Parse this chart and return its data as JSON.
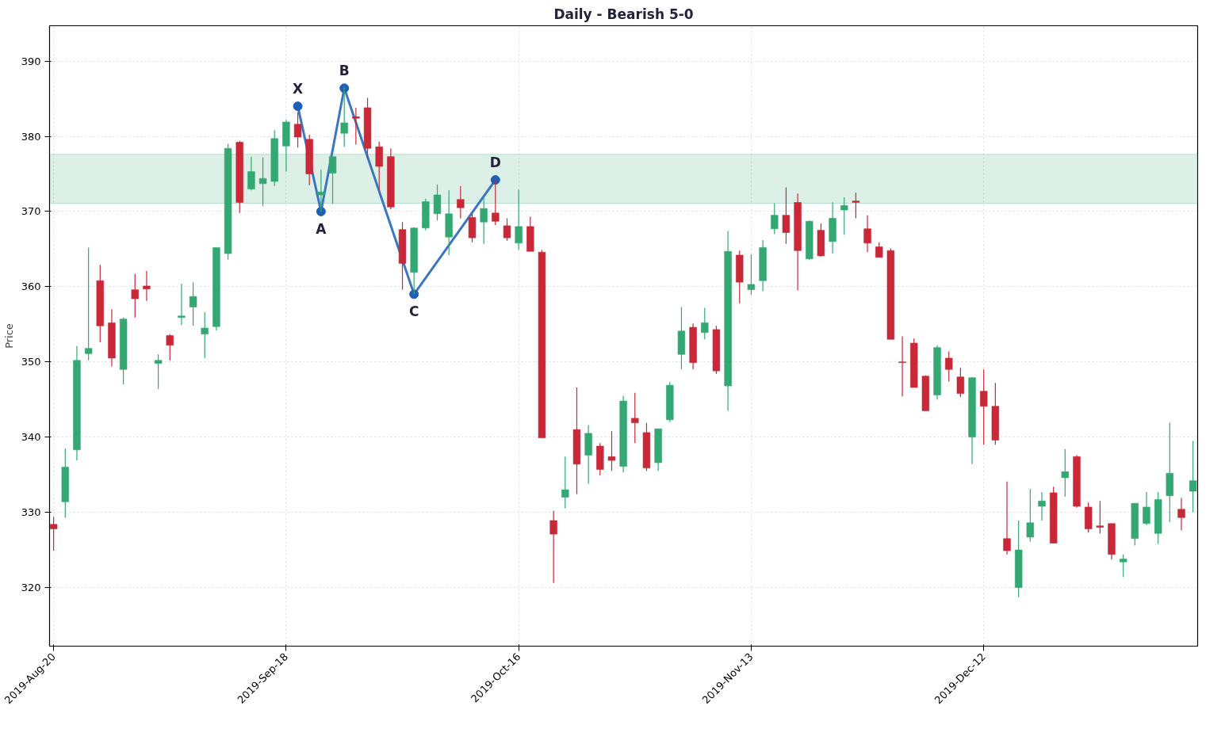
{
  "chart_data": {
    "type": "candlestick",
    "title": "Daily - Bearish 5-0",
    "ylabel": "Price",
    "categories": [
      "2019-Aug-20",
      null,
      null,
      null,
      null,
      null,
      null,
      null,
      null,
      null,
      null,
      null,
      null,
      null,
      null,
      null,
      null,
      null,
      null,
      null,
      "2019-Sep-18",
      null,
      null,
      null,
      null,
      null,
      null,
      null,
      null,
      null,
      null,
      null,
      null,
      null,
      null,
      null,
      null,
      null,
      null,
      null,
      "2019-Oct-16",
      null,
      null,
      null,
      null,
      null,
      null,
      null,
      null,
      null,
      null,
      null,
      null,
      null,
      null,
      null,
      null,
      null,
      null,
      null,
      "2019-Nov-13",
      null,
      null,
      null,
      null,
      null,
      null,
      null,
      null,
      null,
      null,
      null,
      null,
      null,
      null,
      null,
      null,
      null,
      null,
      null,
      "2019-Dec-12",
      null,
      null,
      null,
      null,
      null,
      null,
      null,
      null,
      null,
      null,
      null,
      null,
      null,
      null,
      null,
      null,
      null,
      null
    ],
    "ohlc": [
      [
        328.4,
        329.4,
        324.9,
        327.8
      ],
      [
        331.4,
        338.5,
        329.3,
        336.0
      ],
      [
        338.3,
        352.1,
        336.9,
        350.2
      ],
      [
        351.1,
        365.2,
        350.2,
        351.8
      ],
      [
        360.8,
        362.9,
        352.6,
        354.8
      ],
      [
        355.2,
        357.0,
        349.4,
        350.5
      ],
      [
        349.0,
        355.9,
        347.0,
        355.7
      ],
      [
        359.6,
        361.7,
        355.9,
        358.4
      ],
      [
        360.1,
        362.1,
        358.1,
        359.7
      ],
      [
        349.8,
        351.0,
        346.4,
        350.2
      ],
      [
        353.5,
        353.7,
        350.2,
        352.2
      ],
      [
        355.9,
        360.4,
        354.9,
        356.1
      ],
      [
        357.3,
        360.6,
        354.8,
        358.7
      ],
      [
        353.7,
        356.6,
        350.5,
        354.5
      ],
      [
        354.7,
        365.2,
        354.2,
        365.2
      ],
      [
        364.4,
        379.0,
        363.6,
        378.4
      ],
      [
        379.2,
        379.4,
        369.8,
        371.2
      ],
      [
        373.0,
        377.3,
        372.8,
        375.3
      ],
      [
        373.7,
        377.2,
        370.7,
        374.4
      ],
      [
        374.0,
        380.8,
        373.4,
        379.7
      ],
      [
        378.7,
        382.2,
        375.3,
        381.9
      ],
      [
        381.6,
        383.2,
        378.5,
        379.9
      ],
      [
        379.6,
        380.2,
        373.5,
        375.0
      ],
      [
        372.2,
        375.6,
        370.0,
        372.6
      ],
      [
        375.1,
        377.3,
        371.0,
        377.3
      ],
      [
        380.4,
        386.5,
        378.6,
        381.8
      ],
      [
        382.6,
        383.8,
        378.9,
        382.4
      ],
      [
        383.8,
        385.1,
        377.0,
        378.4
      ],
      [
        378.6,
        379.3,
        372.8,
        376.0
      ],
      [
        377.3,
        378.4,
        370.3,
        370.6
      ],
      [
        367.6,
        368.6,
        359.6,
        363.1
      ],
      [
        361.9,
        367.9,
        359.0,
        367.8
      ],
      [
        367.8,
        371.7,
        367.5,
        371.3
      ],
      [
        369.7,
        373.6,
        368.8,
        372.2
      ],
      [
        366.6,
        372.8,
        364.2,
        369.7
      ],
      [
        371.6,
        373.4,
        369.1,
        370.5
      ],
      [
        369.2,
        369.7,
        365.9,
        366.5
      ],
      [
        368.6,
        371.8,
        365.7,
        370.4
      ],
      [
        369.8,
        374.1,
        368.2,
        368.7
      ],
      [
        368.1,
        369.1,
        366.1,
        366.5
      ],
      [
        365.8,
        372.9,
        364.9,
        368.0
      ],
      [
        368.0,
        369.3,
        364.7,
        364.7
      ],
      [
        364.6,
        364.9,
        339.9,
        339.9
      ],
      [
        328.9,
        330.2,
        320.6,
        327.1
      ],
      [
        332.0,
        337.4,
        330.5,
        333.0
      ],
      [
        341.0,
        346.6,
        332.4,
        336.4
      ],
      [
        337.6,
        341.6,
        333.8,
        340.5
      ],
      [
        338.8,
        339.2,
        334.9,
        335.7
      ],
      [
        337.4,
        340.8,
        335.5,
        336.9
      ],
      [
        336.1,
        345.5,
        335.3,
        344.8
      ],
      [
        342.5,
        345.9,
        339.2,
        341.9
      ],
      [
        340.6,
        341.9,
        335.5,
        335.9
      ],
      [
        336.6,
        341.1,
        335.5,
        341.1
      ],
      [
        342.3,
        347.3,
        342.0,
        346.9
      ],
      [
        351.0,
        357.3,
        349.0,
        354.1
      ],
      [
        354.6,
        355.1,
        349.0,
        349.9
      ],
      [
        353.9,
        357.2,
        353.0,
        355.2
      ],
      [
        354.3,
        354.8,
        348.4,
        348.8
      ],
      [
        346.8,
        367.4,
        343.5,
        364.7
      ],
      [
        364.2,
        364.8,
        357.8,
        360.6
      ],
      [
        359.6,
        364.3,
        358.9,
        360.3
      ],
      [
        360.8,
        366.2,
        359.4,
        365.2
      ],
      [
        367.7,
        371.1,
        367.0,
        369.5
      ],
      [
        369.5,
        373.2,
        365.7,
        367.2
      ],
      [
        371.2,
        372.4,
        359.5,
        364.8
      ],
      [
        363.7,
        368.8,
        363.6,
        368.7
      ],
      [
        367.5,
        368.4,
        364.0,
        364.1
      ],
      [
        366.0,
        371.2,
        364.4,
        369.1
      ],
      [
        370.2,
        371.9,
        366.9,
        370.8
      ],
      [
        371.4,
        372.5,
        369.1,
        371.2
      ],
      [
        367.7,
        369.5,
        364.6,
        365.8
      ],
      [
        365.3,
        365.9,
        363.9,
        363.9
      ],
      [
        364.8,
        365.1,
        353.0,
        353.0
      ],
      [
        350.0,
        353.4,
        345.4,
        349.9
      ],
      [
        352.5,
        353.1,
        346.6,
        346.6
      ],
      [
        348.1,
        348.2,
        343.5,
        343.5
      ],
      [
        345.6,
        352.2,
        345.0,
        351.9
      ],
      [
        350.5,
        351.4,
        347.4,
        349.0
      ],
      [
        348.0,
        349.2,
        345.3,
        345.8
      ],
      [
        340.0,
        347.9,
        336.4,
        347.9
      ],
      [
        346.1,
        349.0,
        339.0,
        344.1
      ],
      [
        344.1,
        347.2,
        339.0,
        339.6
      ],
      [
        326.5,
        334.1,
        324.4,
        324.9
      ],
      [
        320.0,
        328.9,
        318.7,
        325.0
      ],
      [
        326.7,
        333.1,
        326.1,
        328.6
      ],
      [
        330.8,
        332.7,
        328.9,
        331.5
      ],
      [
        332.6,
        333.4,
        325.9,
        325.9
      ],
      [
        334.6,
        338.4,
        332.1,
        335.4
      ],
      [
        337.4,
        337.6,
        330.6,
        330.8
      ],
      [
        330.7,
        331.3,
        327.3,
        327.8
      ],
      [
        328.2,
        331.5,
        327.2,
        328.0
      ],
      [
        328.5,
        328.5,
        323.7,
        324.4
      ],
      [
        323.4,
        324.4,
        321.4,
        323.8
      ],
      [
        326.5,
        331.2,
        325.6,
        331.2
      ],
      [
        328.5,
        332.7,
        328.3,
        330.7
      ],
      [
        327.2,
        332.7,
        325.8,
        331.7
      ],
      [
        332.2,
        341.9,
        328.7,
        335.2
      ],
      [
        330.4,
        331.9,
        327.6,
        329.3
      ],
      [
        332.8,
        339.5,
        330.0,
        334.2
      ]
    ],
    "colors": [
      "#c82837",
      "#34a873",
      "#34a873",
      "#34a873",
      "#c82837",
      "#c82837",
      "#34a873",
      "#c82837",
      "#c82837",
      "#34a873",
      "#c82837",
      "#34a873",
      "#34a873",
      "#34a873",
      "#34a873",
      "#34a873",
      "#c82837",
      "#34a873",
      "#34a873",
      "#34a873",
      "#34a873",
      "#c82837",
      "#c82837",
      "#34a873",
      "#34a873",
      "#34a873",
      "#c82837",
      "#c82837",
      "#c82837",
      "#c82837",
      "#c82837",
      "#34a873",
      "#34a873",
      "#34a873",
      "#34a873",
      "#c82837",
      "#c82837",
      "#34a873",
      "#c82837",
      "#c82837",
      "#34a873",
      "#c82837",
      "#c82837",
      "#c82837",
      "#34a873",
      "#c82837",
      "#34a873",
      "#c82837",
      "#c82837",
      "#34a873",
      "#c82837",
      "#c82837",
      "#34a873",
      "#34a873",
      "#34a873",
      "#c82837",
      "#34a873",
      "#c82837",
      "#34a873",
      "#c82837",
      "#34a873",
      "#34a873",
      "#34a873",
      "#c82837",
      "#c82837",
      "#34a873",
      "#c82837",
      "#34a873",
      "#34a873",
      "#c82837",
      "#c82837",
      "#c82837",
      "#c82837",
      "#c82837",
      "#c82837",
      "#c82837",
      "#34a873",
      "#c82837",
      "#c82837",
      "#34a873",
      "#c82837",
      "#c82837",
      "#c82837",
      "#34a873",
      "#34a873",
      "#34a873",
      "#c82837",
      "#34a873",
      "#c82837",
      "#c82837",
      "#c82837",
      "#c82837",
      "#34a873",
      "#34a873",
      "#34a873",
      "#34a873",
      "#34a873",
      "#c82837",
      "#34a873"
    ],
    "series": [
      {
        "type": "line",
        "color": "#3b76c2",
        "marker": "circle",
        "values": [
          null,
          null,
          null,
          null,
          null,
          null,
          null,
          null,
          null,
          null,
          null,
          null,
          null,
          null,
          null,
          null,
          null,
          null,
          null,
          null,
          null,
          384,
          null,
          370,
          null,
          386.4,
          null,
          null,
          null,
          null,
          null,
          359,
          null,
          null,
          null,
          null,
          null,
          null,
          374.2,
          null,
          null,
          null,
          null,
          null,
          null,
          null,
          null,
          null,
          null,
          null,
          null,
          null,
          null,
          null,
          null,
          null,
          null,
          null,
          null,
          null,
          null,
          null,
          null,
          null,
          null,
          null,
          null,
          null,
          null,
          null,
          null,
          null,
          null,
          null,
          null,
          null,
          null,
          null,
          null,
          null,
          null,
          null,
          null,
          null,
          null,
          null,
          null,
          null,
          null,
          null,
          null,
          null,
          null,
          null,
          null,
          null,
          null,
          null,
          null
        ]
      }
    ],
    "annotations": [
      {
        "text": "X",
        "y": 384
      },
      {
        "text": "A",
        "y": 370
      },
      {
        "text": "B",
        "y": 386.4
      },
      {
        "text": "C",
        "y": 359
      },
      {
        "text": "D",
        "y": 374.2
      }
    ],
    "bands": [
      {
        "axis": "y",
        "from": 371.1,
        "to": 377.6,
        "color": "#34a873"
      }
    ],
    "ylim": [
      312.2,
      394.7
    ],
    "yticks": [
      320,
      330,
      340,
      350,
      360,
      370,
      380,
      390
    ],
    "grid": true
  }
}
